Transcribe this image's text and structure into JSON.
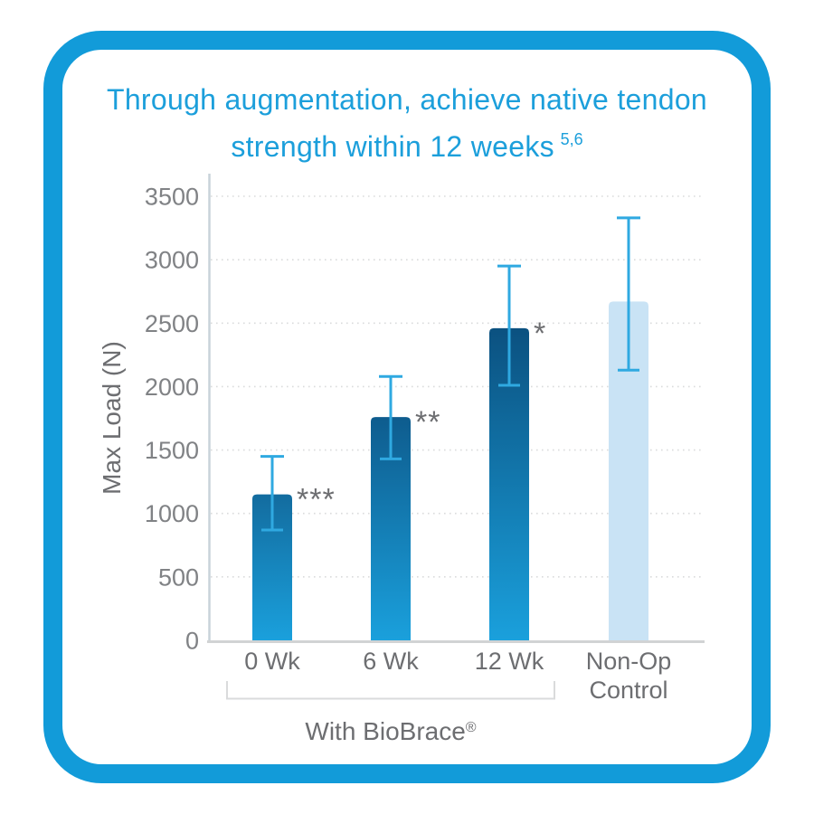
{
  "title": {
    "line1": "Through augmentation, achieve native tendon",
    "line2": "strength within 12 weeks",
    "superscript": "5,6"
  },
  "chart_data": {
    "type": "bar",
    "title": "Through augmentation, achieve native tendon strength within 12 weeks 5,6",
    "xlabel": "",
    "ylabel": "Max Load (N)",
    "ylim": [
      0,
      3500
    ],
    "yticks": [
      0,
      500,
      1000,
      1500,
      2000,
      2500,
      3000,
      3500
    ],
    "grid": "horizontal-dotted",
    "legend_position": "none",
    "categories": [
      "0 Wk",
      "6 Wk",
      "12 Wk",
      "Non-Op Control"
    ],
    "category_lines": [
      [
        "0 Wk"
      ],
      [
        "6 Wk"
      ],
      [
        "12 Wk"
      ],
      [
        "Non-Op",
        "Control"
      ]
    ],
    "values": [
      1150,
      1760,
      2460,
      2670
    ],
    "error_high": [
      1450,
      2080,
      2950,
      3330
    ],
    "error_low": [
      870,
      1430,
      2010,
      2130
    ],
    "significance": [
      "***",
      "**",
      "*",
      ""
    ],
    "group_bracket": {
      "categories": [
        "0 Wk",
        "6 Wk",
        "12 Wk"
      ],
      "from_index": 0,
      "to_index": 2,
      "label": "With BioBrace",
      "registered_mark": "®"
    }
  },
  "colors": {
    "card_border": "#129bd9",
    "title_text": "#1c9fdb",
    "bar_gradient_bottom": "#1aa0dc",
    "bar_gradient_tops": [
      "#136c9f",
      "#0e5c8e",
      "#0b5180"
    ],
    "control_bar": "#c9e3f5",
    "error_bar": "#2fa9e1",
    "gridline": "#dadbdc",
    "y_axis_line": "#c9d3da",
    "x_axis_line": "#d1d3d4",
    "tick_text": "#808285",
    "label_text": "#6d6e71",
    "stars": "#6d6e71"
  }
}
